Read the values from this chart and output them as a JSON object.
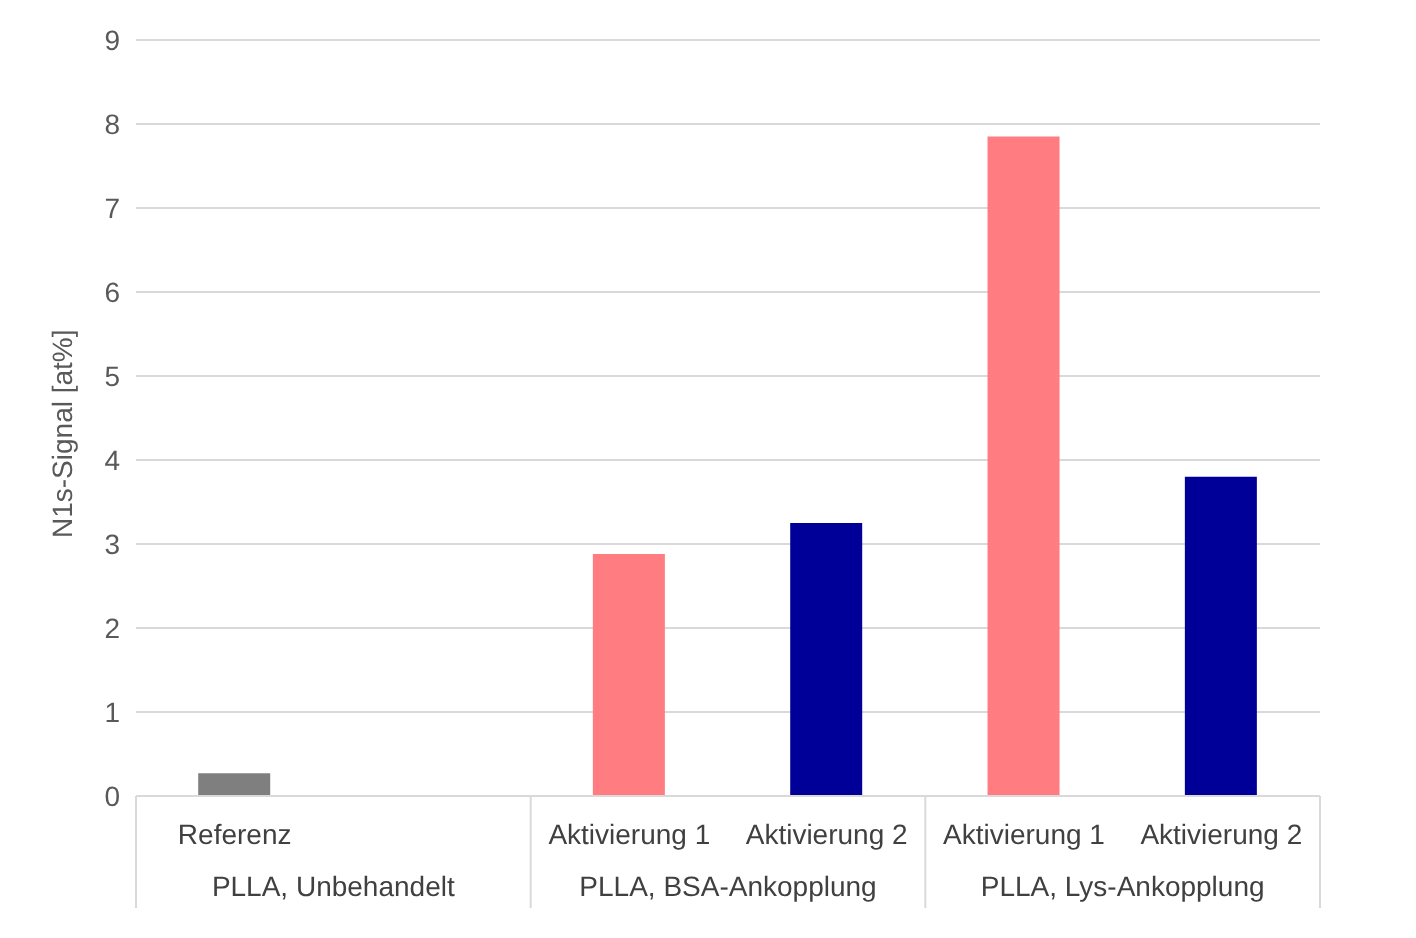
{
  "chart_data": {
    "type": "bar",
    "ylabel": "N1s-Signal [at%]",
    "categories": [
      "Referenz",
      null,
      "Aktivierung 1",
      "Aktivierung 2",
      "Aktivierung 1",
      "Aktivierung 2"
    ],
    "values": [
      0.27,
      null,
      2.88,
      3.25,
      7.85,
      3.8
    ],
    "colors": [
      "#7f7f7f",
      "#7f7f7f",
      "#ff7c80",
      "#000099",
      "#ff7c80",
      "#000099"
    ],
    "annotations": [
      "PLLA, Unbehandelt",
      "PLLA, BSA-Ankopplung",
      "PLLA, Lys-Ankopplung"
    ],
    "ylim": [
      0,
      9
    ],
    "yticks": [
      0,
      1,
      2,
      3,
      4,
      5,
      6,
      7,
      8,
      9
    ],
    "grid": "y",
    "legend": false
  }
}
